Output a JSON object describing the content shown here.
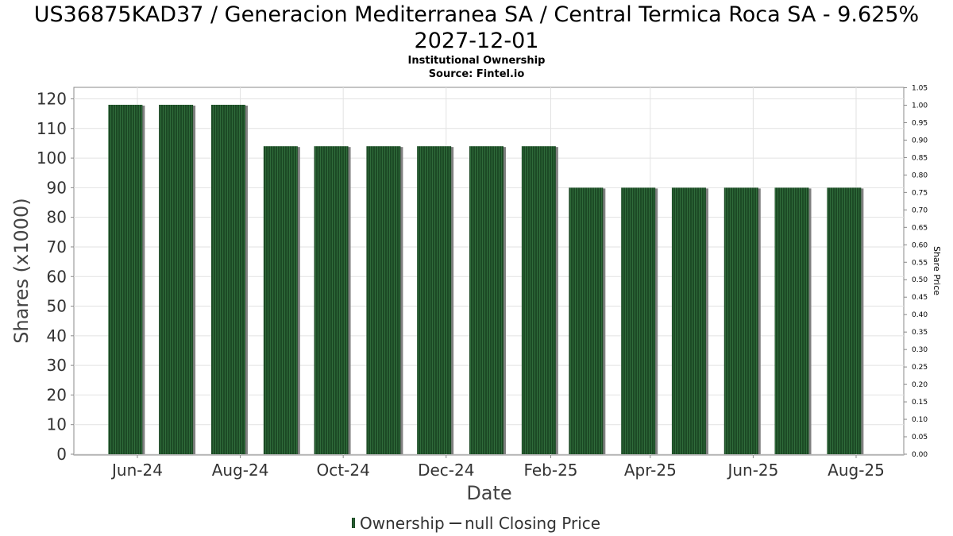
{
  "title_line1": "US36875KAD37 / Generacion Mediterranea SA / Central Termica Roca SA - 9.625%",
  "title_line2": "2027-12-01",
  "subtitle": "Institutional Ownership",
  "source": "Source: Fintel.io",
  "colors": {
    "bar": "#1c4a25",
    "bar_stripe": "#2f6b3a",
    "shadow": "#808080",
    "grid": "#e2e2e2"
  },
  "chart_data": {
    "type": "bar",
    "xlabel": "Date",
    "ylabel": "Shares (x1000)",
    "y2label": "Share Price",
    "ylim": [
      0,
      120
    ],
    "y2lim": [
      0,
      1.05
    ],
    "yticks": [
      "0",
      "10",
      "20",
      "30",
      "40",
      "50",
      "60",
      "70",
      "80",
      "90",
      "100",
      "110",
      "120"
    ],
    "y2ticks": [
      "0.00",
      "0.05",
      "0.10",
      "0.15",
      "0.20",
      "0.25",
      "0.30",
      "0.35",
      "0.40",
      "0.45",
      "0.50",
      "0.55",
      "0.60",
      "0.65",
      "0.70",
      "0.75",
      "0.80",
      "0.85",
      "0.90",
      "0.95",
      "1.00",
      "1.05"
    ],
    "xticks": [
      "Jun-24",
      "Aug-24",
      "Oct-24",
      "Dec-24",
      "Feb-25",
      "Apr-25",
      "Jun-25",
      "Aug-25"
    ],
    "dates": [
      "2024-05-31",
      "2024-06-30",
      "2024-07-31",
      "2024-08-31",
      "2024-09-30",
      "2024-10-31",
      "2024-11-30",
      "2024-12-31",
      "2025-01-31",
      "2025-02-28",
      "2025-03-31",
      "2025-04-30",
      "2025-05-31",
      "2025-06-30",
      "2025-07-31"
    ],
    "xtick_dates": [
      "2024-06-01",
      "2024-08-01",
      "2024-10-01",
      "2024-12-01",
      "2025-02-01",
      "2025-04-01",
      "2025-06-01",
      "2025-08-01"
    ],
    "series": [
      {
        "name": "Ownership",
        "values": [
          118,
          118,
          118,
          104,
          104,
          104,
          104,
          104,
          104,
          90,
          90,
          90,
          90,
          90,
          90
        ]
      }
    ],
    "grid": true,
    "legend_position": "bottom-center",
    "legend": [
      "Ownership",
      "null Closing Price"
    ]
  }
}
